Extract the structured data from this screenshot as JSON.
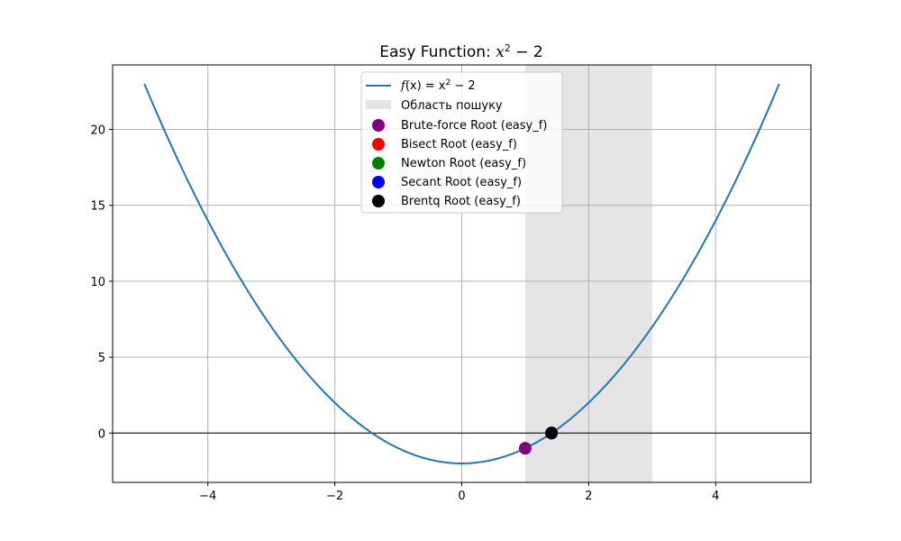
{
  "chart_data": {
    "type": "line",
    "title": {
      "prefix": "Easy Function: ",
      "math": "x",
      "sup": "2",
      "suffix": " − 2"
    },
    "xlabel": "",
    "ylabel": "",
    "xlim": [
      -5.5,
      5.5
    ],
    "ylim": [
      -3.25,
      24.25
    ],
    "xticks": [
      -4,
      -2,
      0,
      2,
      4
    ],
    "xtick_labels": [
      "−4",
      "−2",
      "0",
      "2",
      "4"
    ],
    "yticks": [
      0,
      5,
      10,
      15,
      20
    ],
    "ytick_labels": [
      "0",
      "5",
      "10",
      "15",
      "20"
    ],
    "grid": true,
    "legend_placement": "upper-center",
    "function": {
      "expression": "x^2 - 2",
      "x_range": [
        -5,
        5
      ],
      "color": "#1f77b4",
      "legend": {
        "f": "f",
        "arg": "(x) = x",
        "sup": "2",
        "suffix": " − 2"
      }
    },
    "search_region": {
      "x_range": [
        1,
        3
      ],
      "label": "Область пошуку",
      "color": "#e5e5e5"
    },
    "hline": {
      "y": 0,
      "color": "#000000"
    },
    "roots": [
      {
        "label": "Brute-force Root (easy_f)",
        "x": 1.0,
        "y": -1.0,
        "color": "#800080"
      },
      {
        "label": "Bisect Root (easy_f)",
        "x": 1.4142,
        "y": 0.0,
        "color": "#ff0000"
      },
      {
        "label": "Newton Root (easy_f)",
        "x": 1.4142,
        "y": 0.0,
        "color": "#008000"
      },
      {
        "label": "Secant Root (easy_f)",
        "x": 1.4142,
        "y": 0.0,
        "color": "#0000ff"
      },
      {
        "label": "Brentq Root (easy_f)",
        "x": 1.4142,
        "y": 0.0,
        "color": "#000000"
      }
    ]
  }
}
